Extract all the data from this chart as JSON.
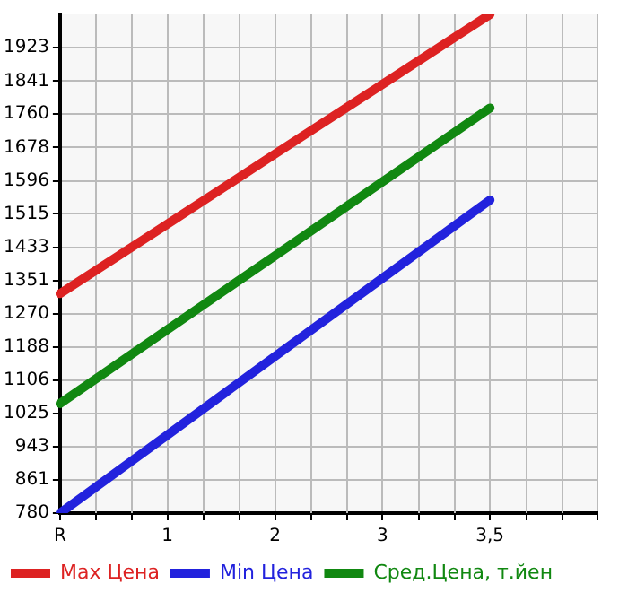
{
  "chart_data": {
    "type": "line",
    "categories": [
      "R",
      "1",
      "2",
      "3",
      "3,5",
      null
    ],
    "ylim": [
      780,
      2005
    ],
    "yticks": [
      780,
      861,
      943,
      1025,
      1106,
      1188,
      1270,
      1351,
      1433,
      1515,
      1596,
      1678,
      1760,
      1841,
      1923
    ],
    "series": [
      {
        "name": "Max Цена",
        "color": "#dd2222",
        "values": [
          1319,
          1490,
          1662,
          1833,
          2005,
          null
        ]
      },
      {
        "name": "Min Цена",
        "color": "#2222dd",
        "values": [
          780,
          972,
          1165,
          1357,
          1549,
          null
        ]
      },
      {
        "name": "Сред.Цена, т.йен",
        "color": "#118811",
        "values": [
          1049,
          1231,
          1412,
          1594,
          1775,
          null
        ]
      }
    ],
    "grid": true,
    "legend": "bottom",
    "marker": "none",
    "line_style": "solid"
  }
}
